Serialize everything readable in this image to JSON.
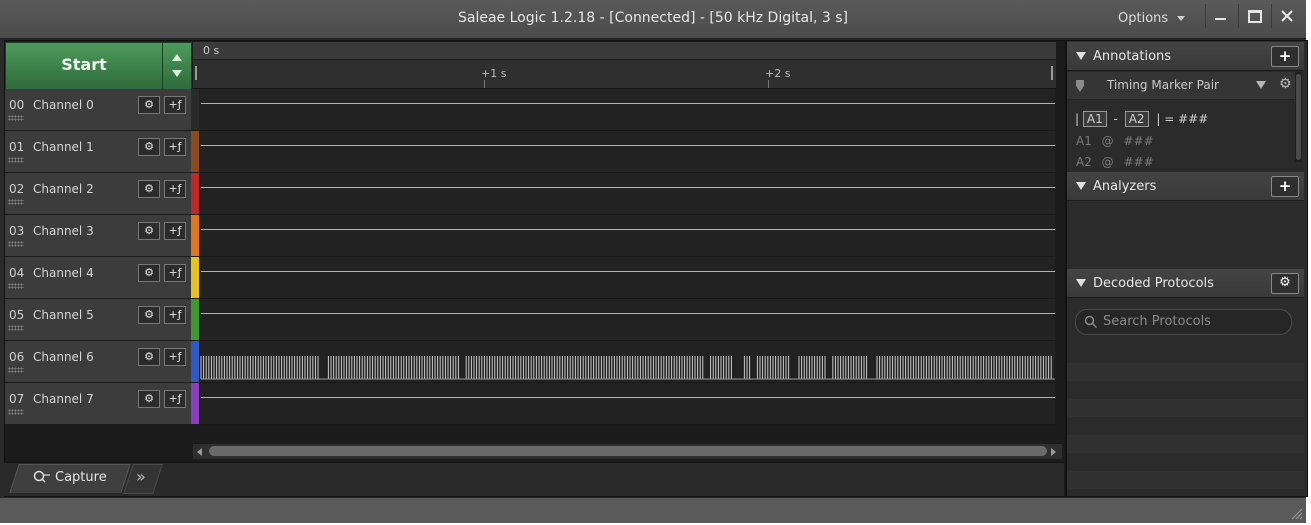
{
  "window": {
    "title": "Saleae Logic 1.2.18 - [Connected] - [50 kHz Digital, 3 s]",
    "options_label": "Options",
    "minimize": "—",
    "maximize": "☐",
    "close": "✕"
  },
  "controls": {
    "start_label": "Start"
  },
  "ruler": {
    "origin_label": "0 s",
    "ticks": [
      "+1 s",
      "+2 s"
    ]
  },
  "channels": [
    {
      "num": "00",
      "name": "Channel 0",
      "color": "#2a2a2a"
    },
    {
      "num": "01",
      "name": "Channel 1",
      "color": "#8b4a1e"
    },
    {
      "num": "02",
      "name": "Channel 2",
      "color": "#c0282a"
    },
    {
      "num": "03",
      "name": "Channel 3",
      "color": "#e0761c"
    },
    {
      "num": "04",
      "name": "Channel 4",
      "color": "#e8c21c"
    },
    {
      "num": "05",
      "name": "Channel 5",
      "color": "#3f9a2e"
    },
    {
      "num": "06",
      "name": "Channel 6",
      "color": "#2f58c8"
    },
    {
      "num": "07",
      "name": "Channel 7",
      "color": "#8a3fc2"
    }
  ],
  "channel_buttons": {
    "settings_icon": "gear-icon",
    "trigger_icon": "trigger-edge-icon"
  },
  "tabs": {
    "capture_label": "Capture",
    "more": "»"
  },
  "annotations": {
    "title": "Annotations",
    "add": "+",
    "marker_name": "Timing Marker Pair",
    "formula_a1": "A1",
    "formula_sep": "-",
    "formula_a2": "A2",
    "formula_result": "| = ###",
    "a1_label": "A1",
    "a1_at": "@",
    "a1_value": "###",
    "a2_label": "A2",
    "a2_at": "@",
    "a2_value": "###"
  },
  "analyzers": {
    "title": "Analyzers",
    "add": "+"
  },
  "decoded": {
    "title": "Decoded Protocols",
    "search_placeholder": "Search Protocols"
  }
}
